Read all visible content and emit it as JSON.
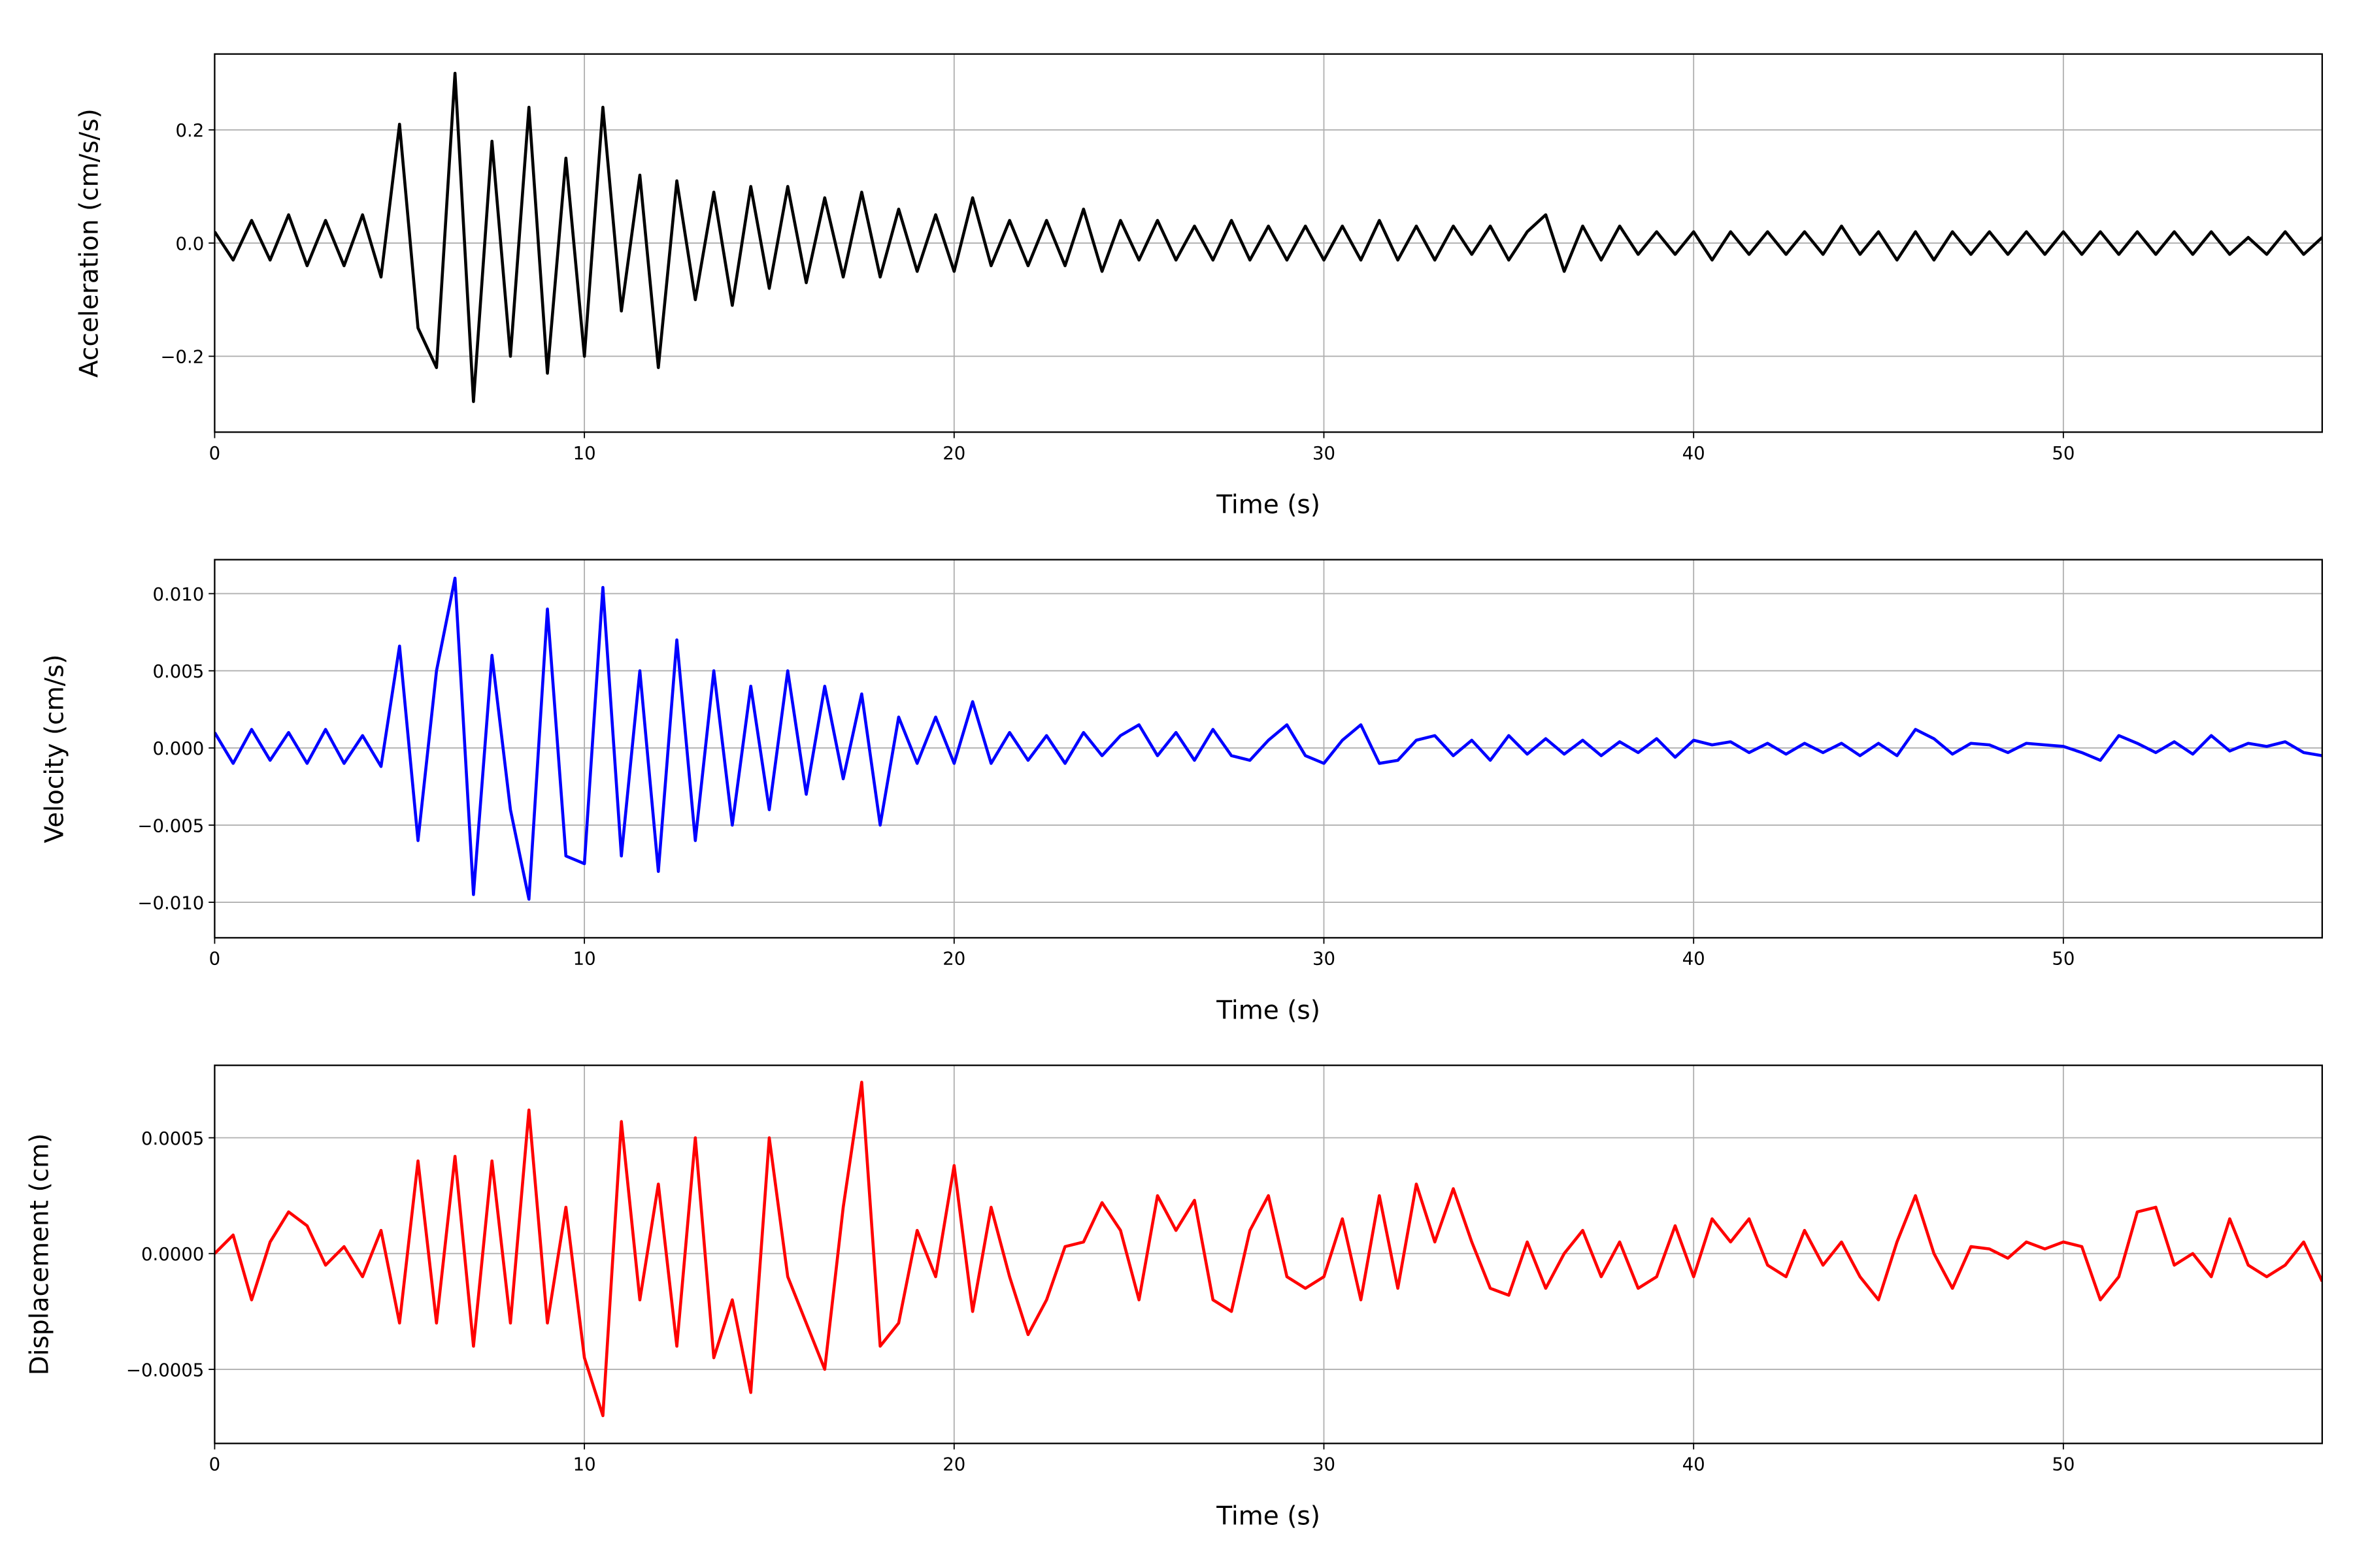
{
  "chart_data": [
    {
      "type": "line",
      "xlabel": "Time (s)",
      "ylabel": "Acceleration (cm/s/s)",
      "color": "#000000",
      "grid": true,
      "xlim": [
        0,
        57
      ],
      "xticks": [
        0,
        10,
        20,
        30,
        40,
        50
      ],
      "ylim": [
        -0.334,
        0.334
      ],
      "yticks": [
        {
          "value": -0.2,
          "label": "−0.2"
        },
        {
          "value": 0,
          "label": "0.0"
        },
        0.2
      ],
      "x": [
        0,
        0.5,
        1,
        1.5,
        2,
        2.5,
        3,
        3.5,
        4,
        4.5,
        5,
        5.5,
        6,
        6.5,
        7,
        7.5,
        8,
        8.5,
        9,
        9.5,
        10,
        10.5,
        11,
        11.5,
        12,
        12.5,
        13,
        13.5,
        14,
        14.5,
        15,
        15.5,
        16,
        16.5,
        17,
        17.5,
        18,
        18.5,
        19,
        19.5,
        20,
        20.5,
        21,
        21.5,
        22,
        22.5,
        23,
        23.5,
        24,
        24.5,
        25,
        25.5,
        26,
        26.5,
        27,
        27.5,
        28,
        28.5,
        29,
        29.5,
        30,
        30.5,
        31,
        31.5,
        32,
        32.5,
        33,
        33.5,
        34,
        34.5,
        35,
        35.5,
        36,
        36.5,
        37,
        37.5,
        38,
        38.5,
        39,
        39.5,
        40,
        40.5,
        41,
        41.5,
        42,
        42.5,
        43,
        43.5,
        44,
        44.5,
        45,
        45.5,
        46,
        46.5,
        47,
        47.5,
        48,
        48.5,
        49,
        49.5,
        50,
        50.5,
        51,
        51.5,
        52,
        52.5,
        53,
        53.5,
        54,
        54.5,
        55,
        55.5,
        56,
        56.5,
        57
      ],
      "values": [
        0.02,
        -0.03,
        0.04,
        -0.03,
        0.05,
        -0.04,
        0.04,
        -0.04,
        0.05,
        -0.06,
        0.21,
        -0.15,
        -0.22,
        0.3,
        -0.28,
        0.18,
        -0.2,
        0.24,
        -0.23,
        0.15,
        -0.2,
        0.24,
        -0.12,
        0.12,
        -0.22,
        0.11,
        -0.1,
        0.09,
        -0.11,
        0.1,
        -0.08,
        0.1,
        -0.07,
        0.08,
        -0.06,
        0.09,
        -0.06,
        0.06,
        -0.05,
        0.05,
        -0.05,
        0.08,
        -0.04,
        0.04,
        -0.04,
        0.04,
        -0.04,
        0.06,
        -0.05,
        0.04,
        -0.03,
        0.04,
        -0.03,
        0.03,
        -0.03,
        0.04,
        -0.03,
        0.03,
        -0.03,
        0.03,
        -0.03,
        0.03,
        -0.03,
        0.04,
        -0.03,
        0.03,
        -0.03,
        0.03,
        -0.02,
        0.03,
        -0.03,
        0.02,
        0.05,
        -0.05,
        0.03,
        -0.03,
        0.03,
        -0.02,
        0.02,
        -0.02,
        0.02,
        -0.03,
        0.02,
        -0.02,
        0.02,
        -0.02,
        0.02,
        -0.02,
        0.03,
        -0.02,
        0.02,
        -0.03,
        0.02,
        -0.03,
        0.02,
        -0.02,
        0.02,
        -0.02,
        0.02,
        -0.02,
        0.02,
        -0.02,
        0.02,
        -0.02,
        0.02,
        -0.02,
        0.02,
        -0.02,
        0.02,
        -0.02,
        0.01,
        -0.02,
        0.02,
        -0.02,
        0.01
      ]
    },
    {
      "type": "line",
      "xlabel": "Time (s)",
      "ylabel": "Velocity (cm/s)",
      "color": "#0000ff",
      "grid": true,
      "xlim": [
        0,
        57
      ],
      "xticks": [
        0,
        10,
        20,
        30,
        40,
        50
      ],
      "ylim": [
        -0.0123,
        0.0122
      ],
      "yticks": [
        {
          "value": -0.01,
          "label": "−0.010"
        },
        {
          "value": -0.005,
          "label": "−0.005"
        },
        {
          "value": 0,
          "label": "0.000"
        },
        0.005,
        {
          "value": 0.01,
          "label": "0.010"
        }
      ],
      "x": [
        0,
        0.5,
        1,
        1.5,
        2,
        2.5,
        3,
        3.5,
        4,
        4.5,
        5,
        5.5,
        6,
        6.5,
        7,
        7.5,
        8,
        8.5,
        9,
        9.5,
        10,
        10.5,
        11,
        11.5,
        12,
        12.5,
        13,
        13.5,
        14,
        14.5,
        15,
        15.5,
        16,
        16.5,
        17,
        17.5,
        18,
        18.5,
        19,
        19.5,
        20,
        20.5,
        21,
        21.5,
        22,
        22.5,
        23,
        23.5,
        24,
        24.5,
        25,
        25.5,
        26,
        26.5,
        27,
        27.5,
        28,
        28.5,
        29,
        29.5,
        30,
        30.5,
        31,
        31.5,
        32,
        32.5,
        33,
        33.5,
        34,
        34.5,
        35,
        35.5,
        36,
        36.5,
        37,
        37.5,
        38,
        38.5,
        39,
        39.5,
        40,
        40.5,
        41,
        41.5,
        42,
        42.5,
        43,
        43.5,
        44,
        44.5,
        45,
        45.5,
        46,
        46.5,
        47,
        47.5,
        48,
        48.5,
        49,
        49.5,
        50,
        50.5,
        51,
        51.5,
        52,
        52.5,
        53,
        53.5,
        54,
        54.5,
        55,
        55.5,
        56,
        56.5,
        57
      ],
      "values": [
        0.001,
        -0.001,
        0.0012,
        -0.0008,
        0.001,
        -0.001,
        0.0012,
        -0.001,
        0.0008,
        -0.0012,
        0.0066,
        -0.006,
        0.005,
        0.011,
        -0.0095,
        0.006,
        -0.004,
        -0.0098,
        0.009,
        -0.007,
        -0.0075,
        0.0104,
        -0.007,
        0.005,
        -0.008,
        0.007,
        -0.006,
        0.005,
        -0.005,
        0.004,
        -0.004,
        0.005,
        -0.003,
        0.004,
        -0.002,
        0.0035,
        -0.005,
        0.002,
        -0.001,
        0.002,
        -0.001,
        0.003,
        -0.001,
        0.001,
        -0.0008,
        0.0008,
        -0.001,
        0.001,
        -0.0005,
        0.0008,
        0.0015,
        -0.0005,
        0.001,
        -0.0008,
        0.0012,
        -0.0005,
        -0.0008,
        0.0005,
        0.0015,
        -0.0005,
        -0.001,
        0.0005,
        0.0015,
        -0.001,
        -0.0008,
        0.0005,
        0.0008,
        -0.0005,
        0.0005,
        -0.0008,
        0.0008,
        -0.0004,
        0.0006,
        -0.0004,
        0.0005,
        -0.0005,
        0.0004,
        -0.0003,
        0.0006,
        -0.0006,
        0.0005,
        0.0002,
        0.0004,
        -0.0003,
        0.0003,
        -0.0004,
        0.0003,
        -0.0003,
        0.0003,
        -0.0005,
        0.0003,
        -0.0005,
        0.0012,
        0.0006,
        -0.0004,
        0.0003,
        0.0002,
        -0.0003,
        0.0003,
        0.0002,
        0.0001,
        -0.0003,
        -0.0008,
        0.0008,
        0.0003,
        -0.0003,
        0.0004,
        -0.0004,
        0.0008,
        -0.0002,
        0.0003,
        0.0001,
        0.0004,
        -0.0003,
        -0.0005
      ]
    },
    {
      "type": "line",
      "xlabel": "Time (s)",
      "ylabel": "Displacement (cm)",
      "color": "#ff0000",
      "grid": true,
      "xlim": [
        0,
        57
      ],
      "xticks": [
        0,
        10,
        20,
        30,
        40,
        50
      ],
      "ylim": [
        -0.00082,
        0.000813
      ],
      "yticks": [
        {
          "value": -0.0005,
          "label": "−0.0005"
        },
        {
          "value": 0,
          "label": "0.0000"
        },
        0.0005
      ],
      "x": [
        0,
        0.5,
        1,
        1.5,
        2,
        2.5,
        3,
        3.5,
        4,
        4.5,
        5,
        5.5,
        6,
        6.5,
        7,
        7.5,
        8,
        8.5,
        9,
        9.5,
        10,
        10.5,
        11,
        11.5,
        12,
        12.5,
        13,
        13.5,
        14,
        14.5,
        15,
        15.5,
        16,
        16.5,
        17,
        17.5,
        18,
        18.5,
        19,
        19.5,
        20,
        20.5,
        21,
        21.5,
        22,
        22.5,
        23,
        23.5,
        24,
        24.5,
        25,
        25.5,
        26,
        26.5,
        27,
        27.5,
        28,
        28.5,
        29,
        29.5,
        30,
        30.5,
        31,
        31.5,
        32,
        32.5,
        33,
        33.5,
        34,
        34.5,
        35,
        35.5,
        36,
        36.5,
        37,
        37.5,
        38,
        38.5,
        39,
        39.5,
        40,
        40.5,
        41,
        41.5,
        42,
        42.5,
        43,
        43.5,
        44,
        44.5,
        45,
        45.5,
        46,
        46.5,
        47,
        47.5,
        48,
        48.5,
        49,
        49.5,
        50,
        50.5,
        51,
        51.5,
        52,
        52.5,
        53,
        53.5,
        54,
        54.5,
        55,
        55.5,
        56,
        56.5,
        57
      ],
      "values": [
        0,
        8e-05,
        -0.0002,
        5e-05,
        0.00018,
        0.00012,
        -5e-05,
        3e-05,
        -0.0001,
        0.0001,
        -0.0003,
        0.0004,
        -0.0003,
        0.00042,
        -0.0004,
        0.0004,
        -0.0003,
        0.00062,
        -0.0003,
        0.0002,
        -0.00045,
        -0.0007,
        0.00057,
        -0.0002,
        0.0003,
        -0.0004,
        0.0005,
        -0.00045,
        -0.0002,
        -0.0006,
        0.0005,
        -0.0001,
        -0.0003,
        -0.0005,
        0.0002,
        0.00074,
        -0.0004,
        -0.0003,
        0.0001,
        -0.0001,
        0.00038,
        -0.00025,
        0.0002,
        -0.0001,
        -0.00035,
        -0.0002,
        3e-05,
        5e-05,
        0.00022,
        0.0001,
        -0.0002,
        0.00025,
        0.0001,
        0.00023,
        -0.0002,
        -0.00025,
        0.0001,
        0.00025,
        -0.0001,
        -0.00015,
        -0.0001,
        0.00015,
        -0.0002,
        0.00025,
        -0.00015,
        0.0003,
        5e-05,
        0.00028,
        5e-05,
        -0.00015,
        -0.00018,
        5e-05,
        -0.00015,
        0,
        0.0001,
        -0.0001,
        5e-05,
        -0.00015,
        -0.0001,
        0.00012,
        -0.0001,
        0.00015,
        5e-05,
        0.00015,
        -5e-05,
        -0.0001,
        0.0001,
        -5e-05,
        5e-05,
        -0.0001,
        -0.0002,
        5e-05,
        0.00025,
        0,
        -0.00015,
        3e-05,
        2e-05,
        -2e-05,
        5e-05,
        2e-05,
        5e-05,
        3e-05,
        -0.0002,
        -0.0001,
        0.00018,
        0.0002,
        -5e-05,
        0,
        -0.0001,
        0.00015,
        -5e-05,
        -0.0001,
        -5e-05,
        5e-05,
        -0.00012
      ]
    }
  ]
}
